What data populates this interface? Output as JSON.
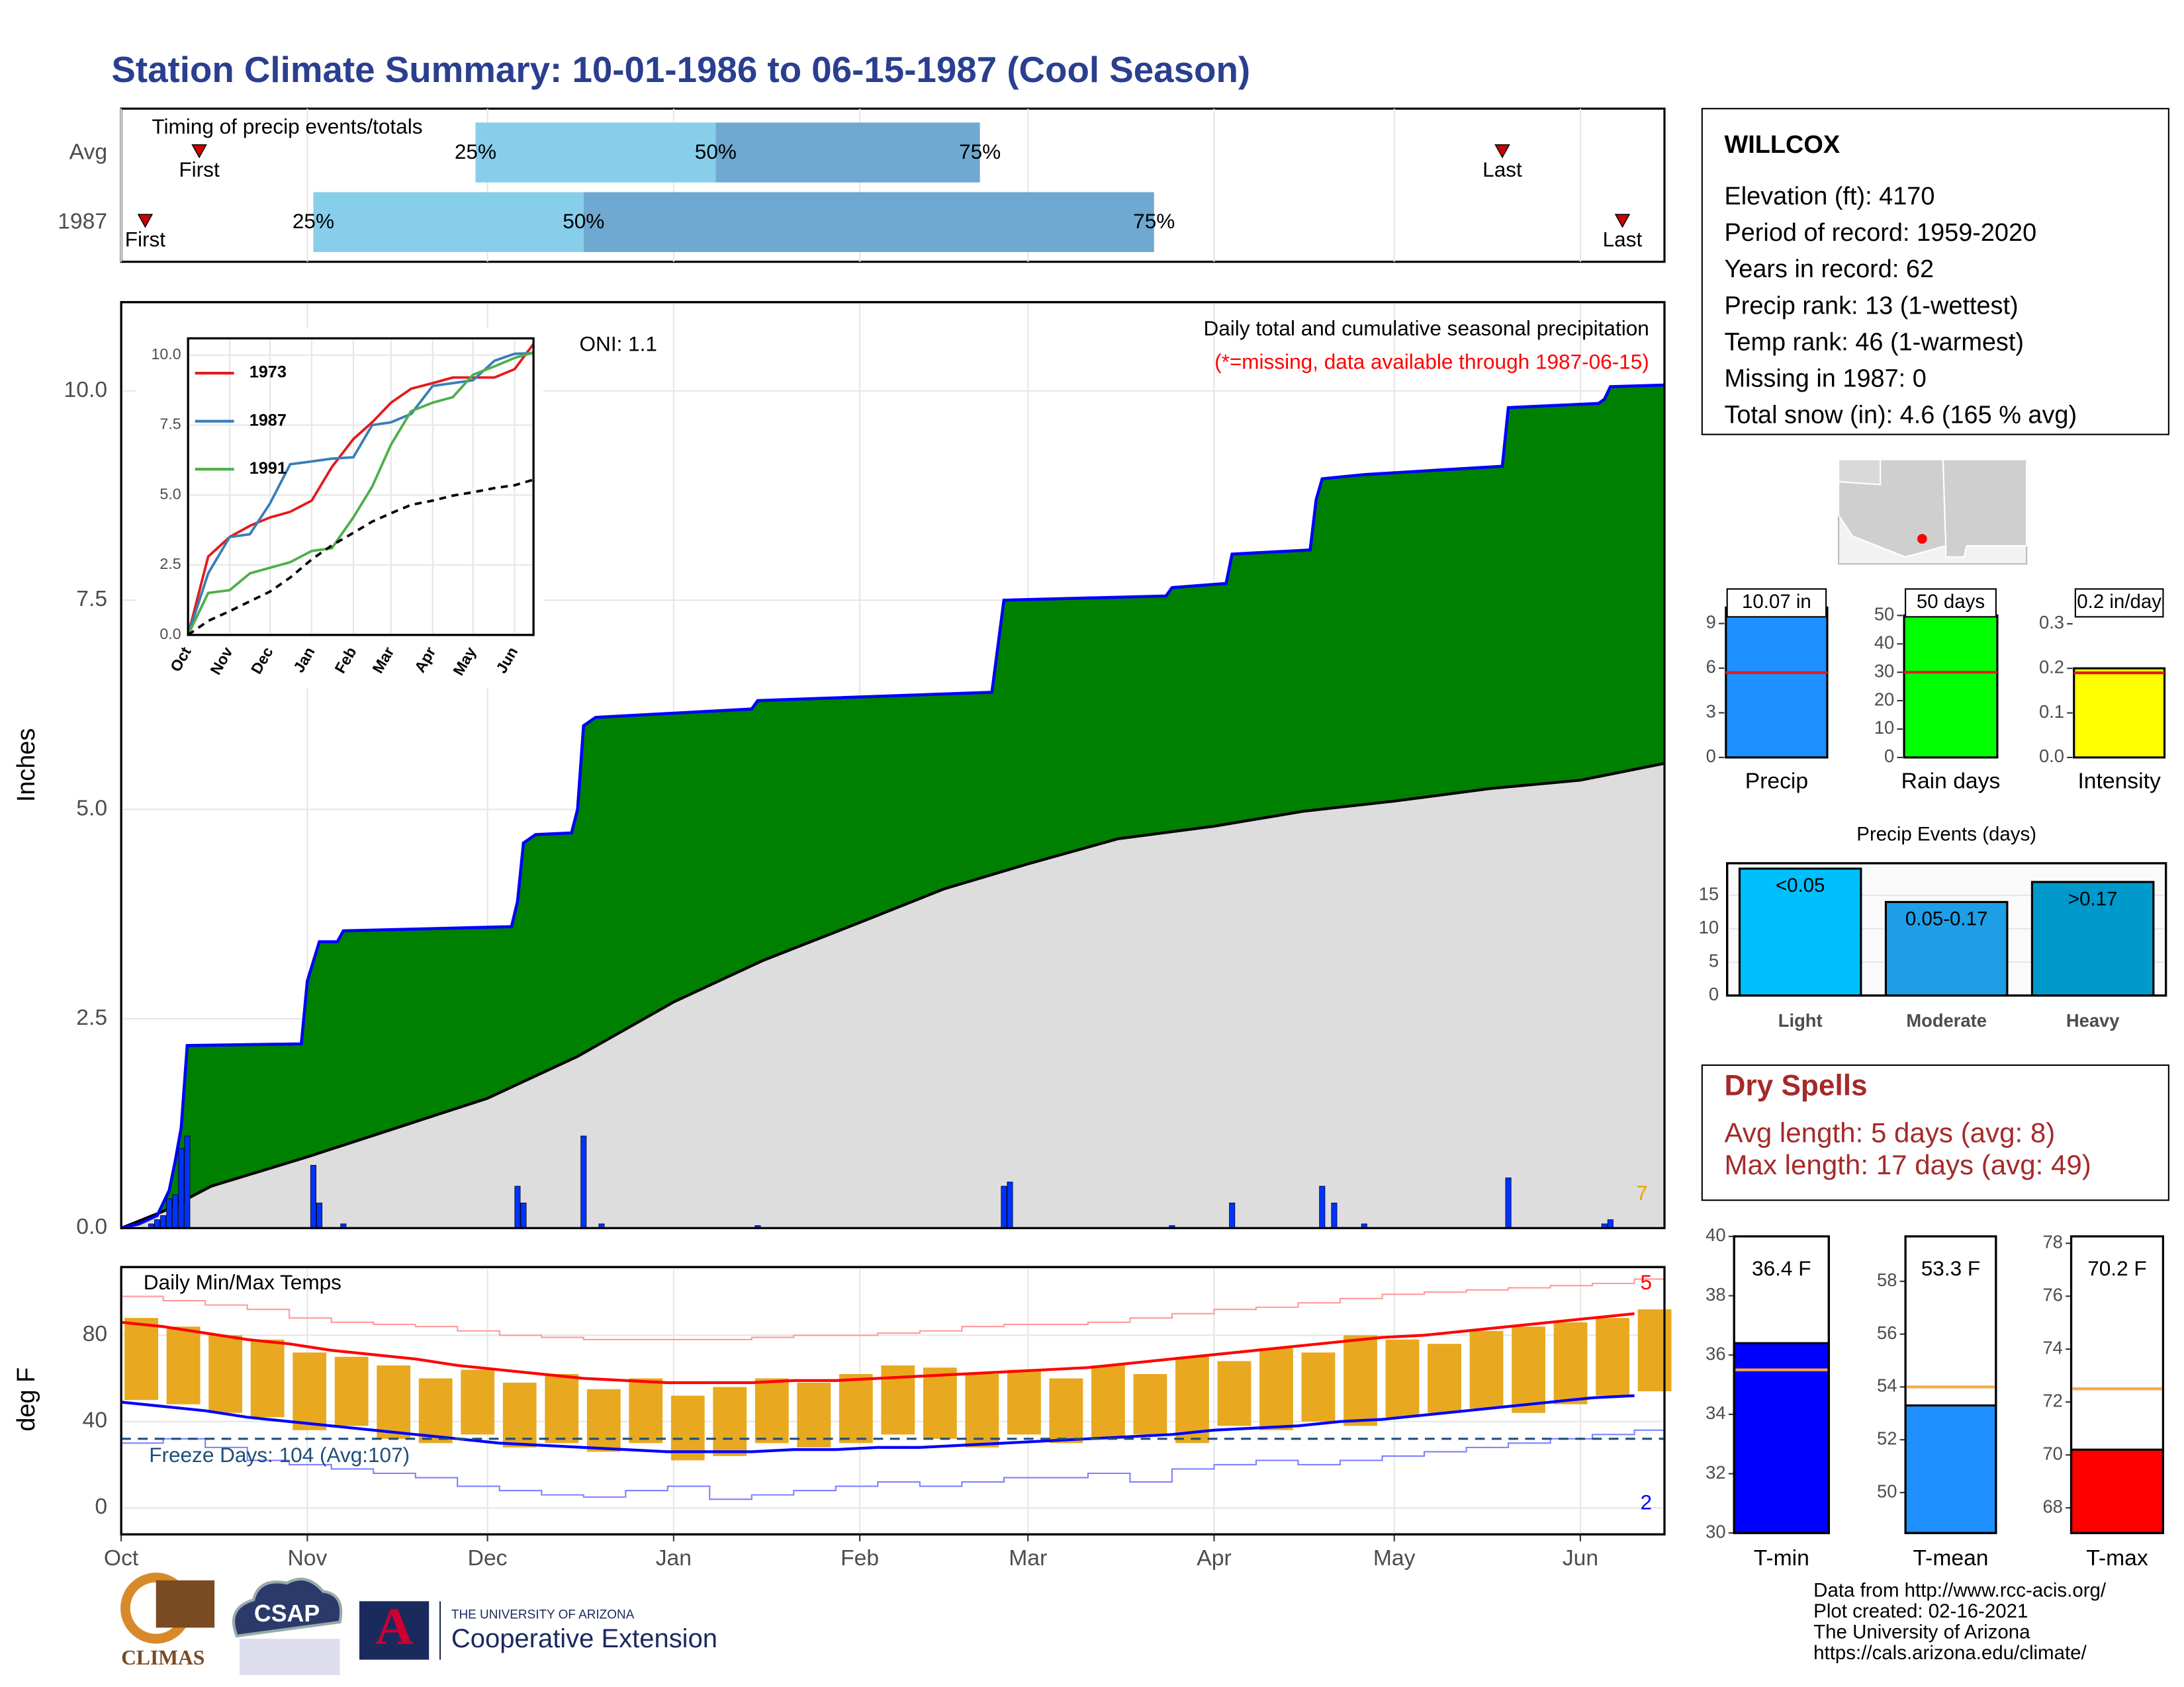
{
  "title": "Station Climate Summary: 10-01-1986 to 06-15-1987 (Cool Season)",
  "station": {
    "name": "WILLCOX",
    "lines": [
      "Elevation (ft): 4170",
      "Period of record: 1959-2020",
      "Years in record: 62",
      "Precip rank: 13 (1-wettest)",
      "Temp rank: 46 (1-warmest)",
      "Missing in 1987: 0",
      "Total snow (in): 4.6 (165 % avg)"
    ]
  },
  "dry_spells": {
    "title": "Dry Spells",
    "lines": [
      "Avg length: 5 days (avg: 8)",
      "Max length: 17 days (avg: 49)"
    ]
  },
  "footer": [
    "Data from http://www.rcc-acis.org/",
    "Plot created: 02-16-2021",
    "The University of Arizona",
    "https://cals.arizona.edu/climate/"
  ],
  "logos": {
    "climas": "CLIMAS",
    "csap": "CSAP",
    "university": "THE UNIVERSITY OF ARIZONA",
    "extension": "Cooperative Extension",
    "ua_mark": "A"
  },
  "chart_data": [
    {
      "type": "timing",
      "title": "Timing of precip events/totals",
      "categories": [
        "Avg",
        "1987"
      ],
      "series": [
        {
          "name": "First",
          "values": [
            13,
            4
          ]
        },
        {
          "name": "25%",
          "values": [
            59,
            32
          ]
        },
        {
          "name": "50%",
          "values": [
            99,
            77
          ]
        },
        {
          "name": "75%",
          "values": [
            143,
            172
          ]
        },
        {
          "name": "Last",
          "values": [
            230,
            250
          ]
        }
      ],
      "colors": {
        "early": "#87ceeb",
        "late": "#6fa8d0",
        "marker": "#cc0000"
      },
      "xlim": [
        0,
        257
      ],
      "xticks": [
        {
          "value": 0,
          "label": "Oct"
        },
        {
          "value": 31,
          "label": "Nov"
        },
        {
          "value": 61,
          "label": "Dec"
        },
        {
          "value": 92,
          "label": "Jan"
        },
        {
          "value": 123,
          "label": "Feb"
        },
        {
          "value": 151,
          "label": "Mar"
        },
        {
          "value": 182,
          "label": "Apr"
        },
        {
          "value": 212,
          "label": "May"
        },
        {
          "value": 243,
          "label": "Jun"
        }
      ]
    },
    {
      "type": "precip",
      "ylabel": "Inches",
      "note": "Daily total and cumulative seasonal precipitation",
      "missing_note": "(*=missing, data available through 1987-06-15)",
      "oni": "ONI: 1.1",
      "count_label": "7",
      "cumulative": {
        "x": [
          0,
          3,
          6,
          7,
          8,
          9,
          10,
          11,
          30,
          31,
          33,
          36,
          37,
          65,
          66,
          67,
          69,
          75,
          76,
          77,
          79,
          105,
          106,
          145,
          146,
          147,
          174,
          175,
          184,
          185,
          198,
          199,
          200,
          207,
          230,
          231,
          246,
          247,
          248,
          257
        ],
        "values": [
          0,
          0.05,
          0.15,
          0.3,
          0.45,
          0.8,
          1.2,
          2.18,
          2.2,
          2.95,
          3.42,
          3.42,
          3.55,
          3.6,
          3.9,
          4.6,
          4.7,
          4.72,
          5.0,
          6.0,
          6.1,
          6.2,
          6.3,
          6.4,
          6.95,
          7.5,
          7.55,
          7.65,
          7.7,
          8.05,
          8.1,
          8.7,
          8.95,
          9.0,
          9.1,
          9.8,
          9.85,
          9.9,
          10.05,
          10.07
        ],
        "fill": "#008000",
        "color": "#0000ff"
      },
      "normal": {
        "x": [
          0,
          7,
          15,
          31,
          46,
          61,
          76,
          92,
          107,
          123,
          137,
          151,
          166,
          182,
          197,
          212,
          228,
          243,
          257
        ],
        "values": [
          0,
          0.2,
          0.5,
          0.85,
          1.2,
          1.55,
          2.05,
          2.7,
          3.2,
          3.65,
          4.05,
          4.35,
          4.65,
          4.8,
          4.98,
          5.1,
          5.25,
          5.35,
          5.55
        ],
        "fill": "#dddddd",
        "color": "#000000"
      },
      "daily": {
        "x": [
          5,
          6,
          7,
          8,
          9,
          10,
          11,
          32,
          33,
          37,
          66,
          67,
          77,
          80,
          106,
          147,
          148,
          175,
          185,
          200,
          202,
          207,
          231,
          247,
          248
        ],
        "values": [
          0.05,
          0.1,
          0.15,
          0.35,
          0.4,
          0.95,
          1.1,
          0.75,
          0.3,
          0.05,
          0.5,
          0.3,
          1.1,
          0.05,
          0.03,
          0.5,
          0.55,
          0.03,
          0.3,
          0.5,
          0.3,
          0.05,
          0.6,
          0.05,
          0.1
        ],
        "color": "#0033ff"
      },
      "xlim": [
        0,
        257
      ],
      "xticks": [
        {
          "value": 0,
          "label": "Oct"
        },
        {
          "value": 31,
          "label": "Nov"
        },
        {
          "value": 61,
          "label": "Dec"
        },
        {
          "value": 92,
          "label": "Jan"
        },
        {
          "value": 123,
          "label": "Feb"
        },
        {
          "value": 151,
          "label": "Mar"
        },
        {
          "value": 182,
          "label": "Apr"
        },
        {
          "value": 212,
          "label": "May"
        },
        {
          "value": 243,
          "label": "Jun"
        }
      ],
      "ylim": [
        0,
        11.06
      ],
      "yticks": [
        {
          "value": 0,
          "label": "0.0"
        },
        {
          "value": 2.5,
          "label": "2.5"
        },
        {
          "value": 5,
          "label": "5.0"
        },
        {
          "value": 7.5,
          "label": "7.5"
        },
        {
          "value": 10,
          "label": "10.0"
        }
      ],
      "grid": true
    },
    {
      "type": "line",
      "x": [
        0,
        15,
        31,
        46,
        61,
        76,
        92,
        107,
        123,
        137,
        151,
        166,
        182,
        197,
        212,
        228,
        243,
        257
      ],
      "series": [
        {
          "name": "1973",
          "color": "#e41a1c",
          "values": [
            0,
            2.8,
            3.5,
            3.9,
            4.2,
            4.4,
            4.8,
            6.0,
            7.0,
            7.6,
            8.3,
            8.8,
            9.0,
            9.2,
            9.2,
            9.2,
            9.5,
            10.4
          ]
        },
        {
          "name": "1987",
          "color": "#377eb8",
          "values": [
            0,
            2.2,
            3.5,
            3.6,
            4.7,
            6.1,
            6.2,
            6.3,
            6.35,
            7.5,
            7.6,
            7.9,
            8.9,
            9.0,
            9.1,
            9.8,
            10.05,
            10.07
          ]
        },
        {
          "name": "1991",
          "color": "#4daf4a",
          "values": [
            0,
            1.5,
            1.6,
            2.2,
            2.4,
            2.6,
            3.0,
            3.1,
            4.2,
            5.3,
            6.8,
            8.0,
            8.3,
            8.5,
            9.3,
            9.6,
            9.9,
            10.1
          ]
        },
        {
          "color": "#000000",
          "dashed": true,
          "values": [
            0,
            0.5,
            0.85,
            1.2,
            1.55,
            2.05,
            2.7,
            3.2,
            3.65,
            4.05,
            4.35,
            4.65,
            4.8,
            4.98,
            5.1,
            5.25,
            5.35,
            5.55
          ]
        }
      ],
      "xlim": [
        0,
        257
      ],
      "xticks": [
        {
          "value": 0,
          "label": "Oct"
        },
        {
          "value": 31,
          "label": "Nov"
        },
        {
          "value": 61,
          "label": "Dec"
        },
        {
          "value": 92,
          "label": "Jan"
        },
        {
          "value": 123,
          "label": "Feb"
        },
        {
          "value": 151,
          "label": "Mar"
        },
        {
          "value": 182,
          "label": "Apr"
        },
        {
          "value": 212,
          "label": "May"
        },
        {
          "value": 243,
          "label": "Jun"
        }
      ],
      "ylim": [
        0,
        10.6
      ],
      "yticks": [
        {
          "value": 0,
          "label": "0.0"
        },
        {
          "value": 2.5,
          "label": "2.5"
        },
        {
          "value": 5,
          "label": "5.0"
        },
        {
          "value": 7.5,
          "label": "7.5"
        },
        {
          "value": 10,
          "label": "10.0"
        }
      ],
      "grid": true
    },
    {
      "type": "temperature",
      "title": "Daily Min/Max Temps",
      "ylabel": "deg F",
      "freeze_label": "Freeze Days: 104 (Avg:107)",
      "high_count": "5",
      "low_count": "2",
      "freeze_line": 32,
      "x": [
        0,
        7,
        14,
        21,
        28,
        35,
        42,
        49,
        56,
        63,
        70,
        77,
        84,
        91,
        98,
        105,
        112,
        119,
        126,
        133,
        140,
        147,
        154,
        161,
        168,
        175,
        182,
        189,
        196,
        203,
        210,
        217,
        224,
        231,
        238,
        245,
        252
      ],
      "tmax": [
        88,
        84,
        80,
        78,
        72,
        70,
        66,
        60,
        64,
        58,
        62,
        55,
        60,
        52,
        56,
        60,
        58,
        62,
        66,
        65,
        62,
        64,
        60,
        66,
        62,
        70,
        68,
        74,
        72,
        80,
        78,
        76,
        82,
        84,
        86,
        88,
        92
      ],
      "tmin": [
        50,
        48,
        44,
        42,
        36,
        38,
        32,
        30,
        34,
        28,
        30,
        26,
        30,
        22,
        24,
        30,
        28,
        30,
        34,
        32,
        28,
        34,
        30,
        32,
        34,
        30,
        38,
        36,
        40,
        38,
        42,
        44,
        46,
        44,
        48,
        52,
        54
      ],
      "avg_max": [
        86,
        84,
        81,
        78,
        76,
        73,
        71,
        69,
        66,
        64,
        62,
        60,
        59,
        58,
        58,
        58,
        59,
        59,
        60,
        61,
        62,
        63,
        64,
        65,
        67,
        69,
        71,
        73,
        75,
        77,
        79,
        80,
        82,
        84,
        86,
        88,
        90
      ],
      "avg_min": [
        49,
        47,
        45,
        42,
        40,
        38,
        36,
        34,
        32,
        30,
        29,
        28,
        27,
        26,
        26,
        26,
        27,
        27,
        28,
        28,
        29,
        30,
        31,
        32,
        33,
        34,
        36,
        37,
        38,
        40,
        41,
        43,
        45,
        47,
        49,
        51,
        52
      ],
      "record_max": [
        98,
        96,
        94,
        92,
        88,
        86,
        85,
        84,
        82,
        80,
        79,
        78,
        78,
        78,
        78,
        79,
        80,
        80,
        81,
        82,
        84,
        85,
        85,
        86,
        88,
        90,
        92,
        93,
        95,
        97,
        99,
        100,
        101,
        102,
        103,
        104,
        106
      ],
      "record_min": [
        30,
        32,
        28,
        22,
        20,
        18,
        16,
        14,
        10,
        8,
        6,
        5,
        8,
        10,
        4,
        6,
        8,
        10,
        12,
        10,
        12,
        14,
        14,
        16,
        12,
        18,
        20,
        22,
        20,
        22,
        24,
        26,
        28,
        30,
        32,
        34,
        36
      ],
      "colors": {
        "bar": "#e8a920",
        "avg_max": "#ff0000",
        "avg_min": "#0000ff",
        "record_max": "#ff9999",
        "record_min": "#8080ff",
        "freeze": "#1f4e79"
      },
      "xlim": [
        0,
        257
      ],
      "xticks": [
        {
          "value": 0,
          "label": "Oct"
        },
        {
          "value": 31,
          "label": "Nov"
        },
        {
          "value": 61,
          "label": "Dec"
        },
        {
          "value": 92,
          "label": "Jan"
        },
        {
          "value": 123,
          "label": "Feb"
        },
        {
          "value": 151,
          "label": "Mar"
        },
        {
          "value": 182,
          "label": "Apr"
        },
        {
          "value": 212,
          "label": "May"
        },
        {
          "value": 243,
          "label": "Jun"
        }
      ],
      "ylim": [
        -12.3,
        111.6
      ],
      "yticks": [
        0,
        40,
        80
      ],
      "grid": true
    },
    {
      "type": "bar",
      "categories": [
        "Precip"
      ],
      "values": [
        10.07
      ],
      "value_labels": [
        "10.07 in"
      ],
      "color": "#1e90ff",
      "ref_value": 5.7,
      "ref_color": "#e41a1c",
      "ylim": [
        0,
        11.6
      ],
      "yticks": [
        0,
        3,
        6,
        9
      ]
    },
    {
      "type": "bar",
      "categories": [
        "Rain days"
      ],
      "values": [
        50
      ],
      "value_labels": [
        "50 days"
      ],
      "color": "#00ff00",
      "ref_value": 30,
      "ref_color": "#e41a1c",
      "ylim": [
        0,
        60.8
      ],
      "yticks": [
        0,
        10,
        20,
        30,
        40,
        50
      ]
    },
    {
      "type": "bar",
      "categories": [
        "Intensity"
      ],
      "values": [
        0.2
      ],
      "value_labels": [
        "0.2 in/day"
      ],
      "color": "#ffff00",
      "ref_value": 0.19,
      "ref_color": "#e41a1c",
      "ylim": [
        0,
        0.3875
      ],
      "yticks": [
        {
          "value": 0,
          "label": "0.0"
        },
        0.1,
        0.2,
        0.3
      ]
    },
    {
      "type": "bar",
      "title": "Precip Events (days)",
      "categories": [
        "Light",
        "Moderate",
        "Heavy"
      ],
      "values": [
        19,
        14,
        17
      ],
      "bin_labels": [
        "<0.05",
        "0.05-0.17",
        ">0.17"
      ],
      "colors": [
        "#00bfff",
        "#1e9ee6",
        "#0099cc"
      ],
      "ylim": [
        0,
        19.8
      ],
      "yticks": [
        0,
        5,
        10,
        15
      ],
      "grid": true
    },
    {
      "type": "bar",
      "categories": [
        "T-min"
      ],
      "values": [
        36.4
      ],
      "value_labels": [
        "36.4 F"
      ],
      "color": "#0000ff",
      "ref_value": 35.5,
      "ref_color": "#f5a742",
      "ylim": [
        30,
        40
      ],
      "yticks": [
        30,
        32,
        34,
        36,
        38,
        40
      ]
    },
    {
      "type": "bar",
      "categories": [
        "T-mean"
      ],
      "values": [
        53.3
      ],
      "value_labels": [
        "53.3 F"
      ],
      "color": "#1e90ff",
      "ref_value": 54,
      "ref_color": "#f5a742",
      "ylim": [
        48.47,
        59.7
      ],
      "yticks": [
        50,
        52,
        54,
        56,
        58
      ]
    },
    {
      "type": "bar",
      "categories": [
        "T-max"
      ],
      "values": [
        70.2
      ],
      "value_labels": [
        "70.2 F"
      ],
      "color": "#ff0000",
      "ref_value": 72.5,
      "ref_color": "#f5a742",
      "ylim": [
        67.05,
        78.26
      ],
      "yticks": [
        68,
        70,
        72,
        74,
        76,
        78
      ]
    }
  ]
}
